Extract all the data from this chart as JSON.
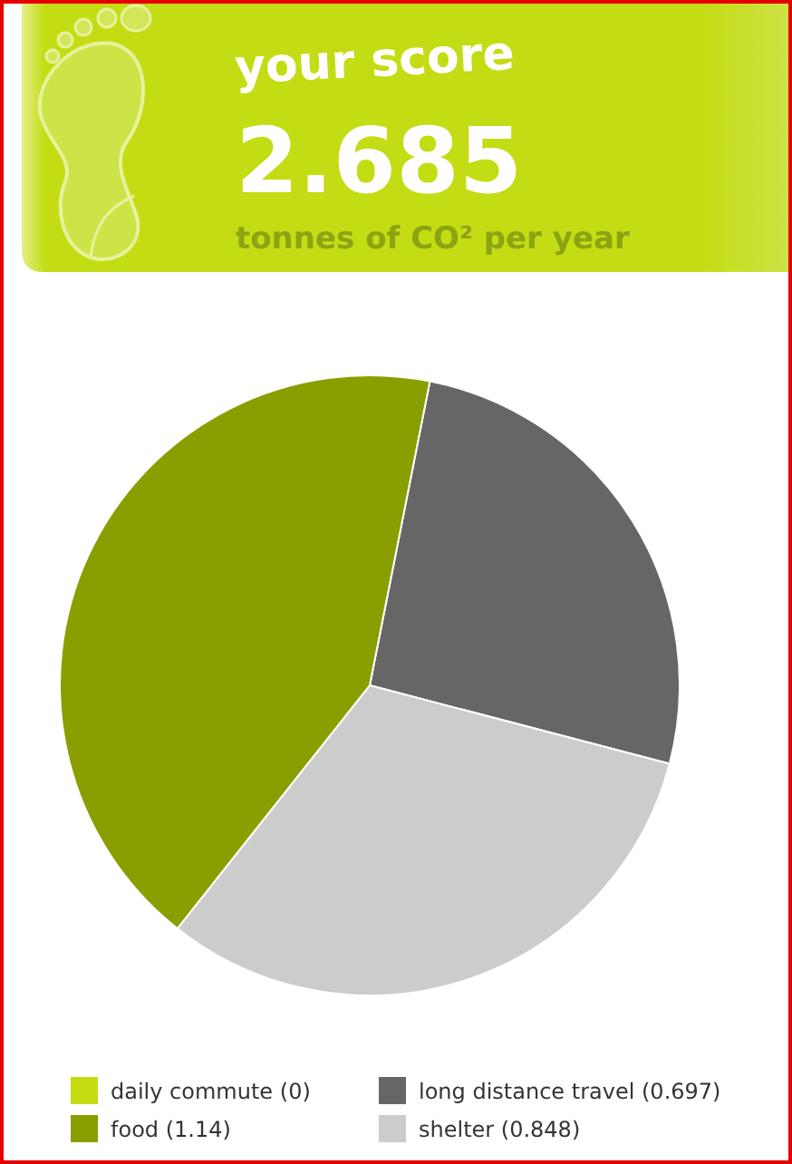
{
  "chart_data": {
    "type": "pie",
    "title": "your score",
    "annotations": [
      "2.685",
      "tonnes of CO² per year"
    ],
    "categories": [
      "daily commute (0)",
      "long distance travel (0.697)",
      "shelter (0.848)",
      "food (1.14)"
    ],
    "values": [
      0,
      0.697,
      0.848,
      1.14
    ],
    "colors": [
      "#c5dc12",
      "#666666",
      "#cccccc",
      "#8a9e00"
    ],
    "legend": "bottom"
  }
}
